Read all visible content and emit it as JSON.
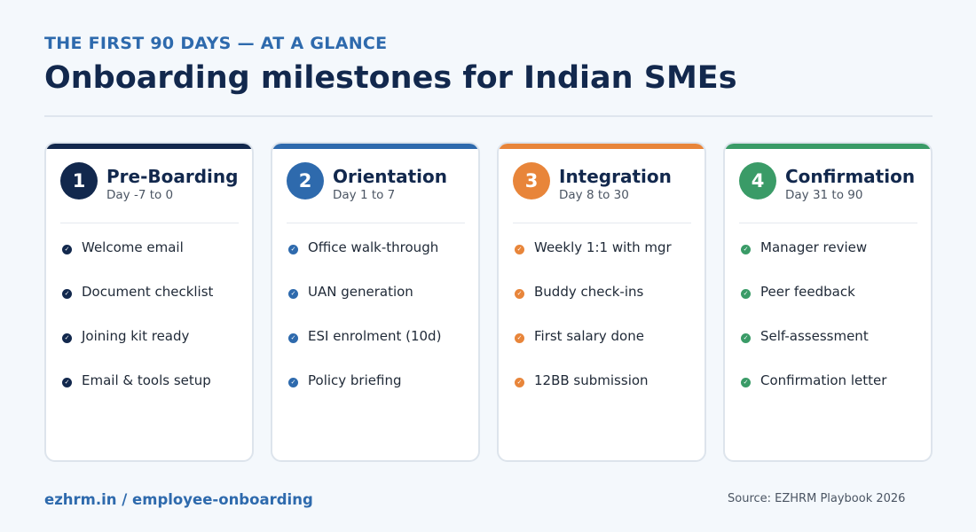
{
  "header": {
    "kicker": "THE FIRST 90 DAYS — AT A GLANCE",
    "title": "Onboarding milestones for Indian SMEs"
  },
  "stages": [
    {
      "number": "1",
      "name": "Pre-Boarding",
      "range": "Day -7 to 0",
      "color": "#12284d",
      "items": [
        "Welcome email",
        "Document checklist",
        "Joining kit ready",
        "Email & tools setup"
      ]
    },
    {
      "number": "2",
      "name": "Orientation",
      "range": "Day 1 to 7",
      "color": "#2e6aad",
      "items": [
        "Office walk-through",
        "UAN generation",
        "ESI enrolment (10d)",
        "Policy briefing"
      ]
    },
    {
      "number": "3",
      "name": "Integration",
      "range": "Day 8 to 30",
      "color": "#e8853a",
      "items": [
        "Weekly 1:1 with mgr",
        "Buddy check-ins",
        "First salary done",
        "12BB submission"
      ]
    },
    {
      "number": "4",
      "name": "Confirmation",
      "range": "Day 31 to 90",
      "color": "#3a9b67",
      "items": [
        "Manager review",
        "Peer feedback",
        "Self-assessment",
        "Confirmation letter"
      ]
    }
  ],
  "footer": {
    "link": "ezhrm.in / employee-onboarding",
    "source": "Source: EZHRM Playbook 2026"
  },
  "icons": {
    "item_marker": "check-icon"
  }
}
